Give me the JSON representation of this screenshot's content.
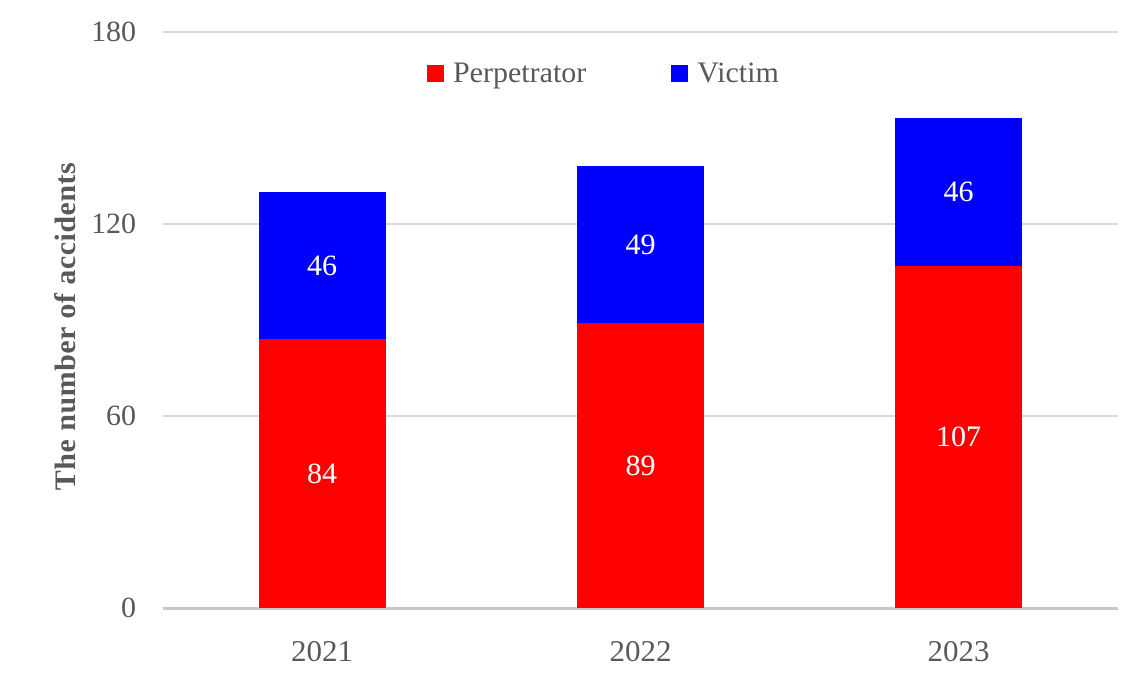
{
  "chart_data": {
    "type": "bar",
    "stacked": true,
    "title": "",
    "xlabel": "",
    "ylabel": "The number of accidents",
    "categories": [
      "2021",
      "2022",
      "2023"
    ],
    "series": [
      {
        "name": "Perpetrator",
        "color": "#ff0000",
        "values": [
          84,
          89,
          107
        ]
      },
      {
        "name": "Victim",
        "color": "#0000ff",
        "values": [
          46,
          49,
          46
        ]
      }
    ],
    "totals": [
      130,
      138,
      153
    ],
    "ylim": [
      0,
      180
    ],
    "yticks": [
      0,
      60,
      120,
      180
    ],
    "grid": true,
    "legend_position": "top-center",
    "value_label_color": "#ffffff"
  },
  "colors": {
    "perpetrator": "#ff0000",
    "victim": "#0000ff",
    "axis_text": "#595959",
    "gridline": "#d9d9d9",
    "axis_line": "#c9c9c9",
    "background": "#ffffff"
  }
}
